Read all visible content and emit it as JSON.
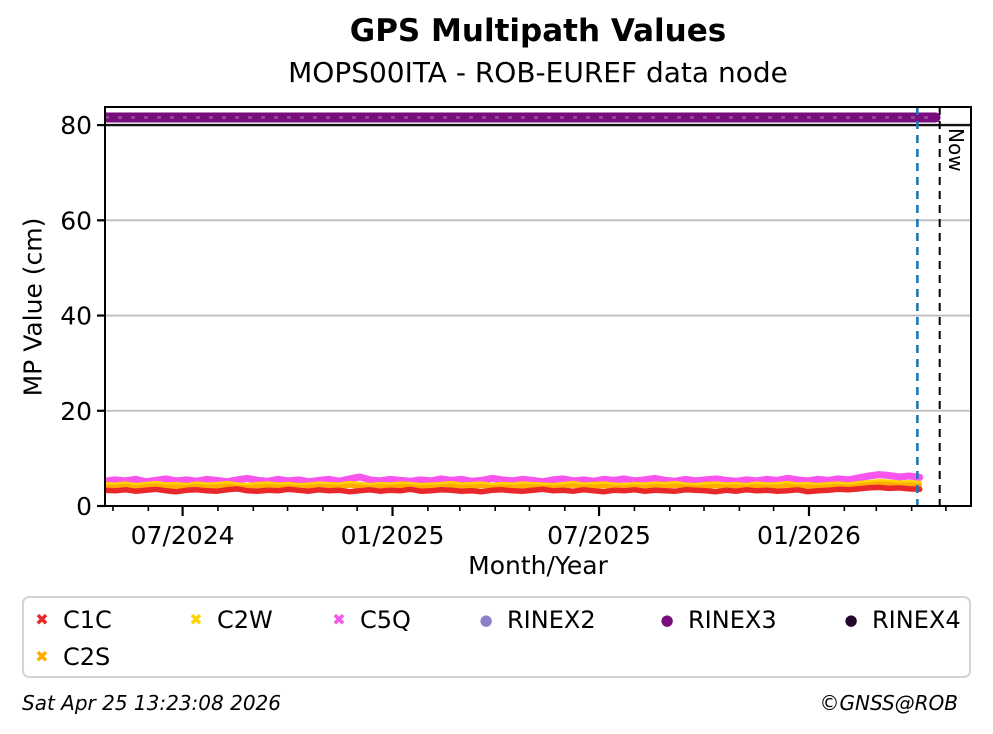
{
  "chart_data": {
    "type": "scatter",
    "title": "GPS Multipath Values",
    "subtitle": "MOPS00ITA - ROB-EUREF data node",
    "xlabel": "Month/Year",
    "ylabel": "MP Value (cm)",
    "ylim": [
      0,
      83.8
    ],
    "yticks": [
      0,
      20,
      40,
      60,
      80
    ],
    "x_range": {
      "start": "2024-04-24",
      "end": "2026-05-23"
    },
    "xticks_major": [
      {
        "label": "07/2024",
        "date": "2024-07-01"
      },
      {
        "label": "01/2025",
        "date": "2025-01-01"
      },
      {
        "label": "07/2025",
        "date": "2025-07-01"
      },
      {
        "label": "01/2026",
        "date": "2026-01-01"
      }
    ],
    "minor_tick_interval": "month",
    "gridlines": {
      "horizontal": [
        20,
        40,
        60
      ],
      "color": "#bbbbbb"
    },
    "divider_value": 80,
    "annotations": {
      "now_line": {
        "label": "Now",
        "date": "2026-04-25T13:23:08",
        "color": "#000000",
        "style": "dashed"
      },
      "last_data_line": {
        "date": "2026-04-06",
        "color": "#1f77b4",
        "style": "dashed"
      }
    },
    "series": [
      {
        "name": "C5Q",
        "color": "#f854ee",
        "marker": "x",
        "width": 7,
        "start": "2024-04-24",
        "end": "2026-04-08",
        "values": [
          5.2,
          5.5,
          5.3,
          5.6,
          5.1,
          5.4,
          5.7,
          5.3,
          5.5,
          5.2,
          5.6,
          5.4,
          5.1,
          5.5,
          5.8,
          5.4,
          5.2,
          5.6,
          5.3,
          5.5,
          5.1,
          5.4,
          5.6,
          5.2,
          5.7,
          6.1,
          5.5,
          5.3,
          5.6,
          5.4,
          5.2,
          5.5,
          5.3,
          5.7,
          5.4,
          5.6,
          5.2,
          5.4,
          5.8,
          5.5,
          5.3,
          5.6,
          5.4,
          5.1,
          5.5,
          5.7,
          5.3,
          5.5,
          5.2,
          5.6,
          5.4,
          5.7,
          5.3,
          5.5,
          5.8,
          5.4,
          5.2,
          5.6,
          5.3,
          5.5,
          5.7,
          5.4,
          5.2,
          5.5,
          5.3,
          5.6,
          5.4,
          5.8,
          5.5,
          5.3,
          5.6,
          5.4,
          5.7,
          5.5,
          5.9,
          6.3,
          6.6,
          6.4,
          6.1,
          6.3,
          6.0
        ]
      },
      {
        "name": "C2W",
        "color": "#ffd400",
        "marker": "x",
        "width": 4.5,
        "start": "2024-04-24",
        "end": "2026-04-08",
        "values": [
          4.6,
          4.5,
          4.7,
          4.4,
          4.6,
          4.8,
          4.5,
          4.6,
          4.4,
          4.7,
          4.5,
          4.6,
          4.8,
          4.5,
          4.4,
          4.6,
          4.7,
          4.5,
          4.6,
          4.4,
          4.5,
          4.7,
          4.6,
          4.5,
          4.8,
          4.6,
          4.4,
          4.6,
          4.5,
          4.7,
          4.6,
          4.4,
          4.5,
          4.6,
          4.8,
          4.5,
          4.6,
          4.7,
          4.4,
          4.6,
          4.5,
          4.7,
          4.6,
          4.5,
          4.4,
          4.6,
          4.8,
          4.5,
          4.6,
          4.7,
          4.5,
          4.4,
          4.6,
          4.5,
          4.7,
          4.6,
          4.8,
          4.5,
          4.4,
          4.6,
          4.7,
          4.5,
          4.6,
          4.4,
          4.7,
          4.5,
          4.6,
          4.8,
          4.5,
          4.6,
          4.4,
          4.6,
          4.7,
          4.5,
          4.8,
          5.0,
          5.2,
          5.1,
          4.9,
          5.0,
          4.8
        ]
      },
      {
        "name": "C2S",
        "color": "#ffae00",
        "marker": "x",
        "width": 4.5,
        "start": "2024-04-24",
        "end": "2026-04-08",
        "values": [
          4.1,
          4.0,
          4.2,
          3.9,
          4.1,
          4.3,
          4.0,
          4.1,
          3.9,
          4.2,
          4.0,
          4.1,
          4.3,
          4.0,
          3.9,
          4.1,
          4.2,
          4.0,
          4.1,
          3.9,
          4.0,
          4.2,
          4.1,
          4.0,
          4.3,
          4.1,
          3.9,
          4.1,
          4.0,
          4.2,
          4.1,
          3.9,
          4.0,
          4.1,
          4.3,
          4.0,
          4.1,
          4.2,
          3.9,
          4.1,
          4.0,
          4.2,
          4.1,
          4.0,
          3.9,
          4.1,
          4.3,
          4.0,
          4.1,
          4.2,
          4.0,
          3.9,
          4.1,
          4.0,
          4.2,
          4.1,
          4.3,
          4.0,
          3.9,
          4.1,
          4.2,
          4.0,
          4.1,
          3.9,
          4.2,
          4.0,
          4.1,
          4.3,
          4.0,
          4.1,
          3.9,
          4.1,
          4.2,
          4.0,
          4.3,
          4.5,
          4.7,
          4.6,
          4.4,
          4.5,
          4.3
        ]
      },
      {
        "name": "C1C",
        "color": "#e8282a",
        "marker": "x",
        "width": 5.5,
        "start": "2024-04-24",
        "end": "2026-04-08",
        "values": [
          3.3,
          3.2,
          3.4,
          3.1,
          3.3,
          3.5,
          3.2,
          3.0,
          3.3,
          3.4,
          3.2,
          3.1,
          3.4,
          3.6,
          3.2,
          3.1,
          3.3,
          3.2,
          3.5,
          3.3,
          3.1,
          3.4,
          3.2,
          3.3,
          3.0,
          3.2,
          3.4,
          3.1,
          3.3,
          3.2,
          3.5,
          3.1,
          3.2,
          3.4,
          3.3,
          3.1,
          3.2,
          3.0,
          3.3,
          3.4,
          3.2,
          3.1,
          3.3,
          3.5,
          3.2,
          3.3,
          3.1,
          3.4,
          3.2,
          3.0,
          3.3,
          3.2,
          3.4,
          3.1,
          3.3,
          3.2,
          3.1,
          3.4,
          3.3,
          3.2,
          3.0,
          3.3,
          3.1,
          3.4,
          3.2,
          3.3,
          3.1,
          3.2,
          3.4,
          3.0,
          3.2,
          3.3,
          3.5,
          3.4,
          3.6,
          3.8,
          3.9,
          3.7,
          3.8,
          3.6,
          3.5
        ]
      },
      {
        "name": "RINEX3",
        "color": "#780d7e",
        "marker": "o",
        "width": 10,
        "start": "2024-04-24",
        "end": "2026-04-22",
        "values": [
          81.6,
          81.6
        ]
      },
      {
        "name": "RINEX2",
        "color": "#8c80c8",
        "marker": "o",
        "width": 10,
        "start": "",
        "end": "",
        "values": []
      },
      {
        "name": "RINEX4",
        "color": "#23082b",
        "marker": "o",
        "width": 10,
        "start": "",
        "end": "",
        "values": []
      }
    ]
  },
  "legend": {
    "items": [
      {
        "label": "C1C",
        "marker": "x",
        "glyph": "✖",
        "color": "#e8282a"
      },
      {
        "label": "C2W",
        "marker": "x",
        "glyph": "✖",
        "color": "#ffd400"
      },
      {
        "label": "C5Q",
        "marker": "x",
        "glyph": "✖",
        "color": "#f854ee"
      },
      {
        "label": "RINEX2",
        "marker": "o",
        "glyph": "●",
        "color": "#8c80c8"
      },
      {
        "label": "RINEX3",
        "marker": "o",
        "glyph": "●",
        "color": "#780d7e"
      },
      {
        "label": "RINEX4",
        "marker": "o",
        "glyph": "●",
        "color": "#23082b"
      },
      {
        "label": "C2S",
        "marker": "x",
        "glyph": "✖",
        "color": "#ffae00"
      }
    ]
  },
  "footer": {
    "timestamp": "Sat Apr 25 13:23:08 2026",
    "credit": "©GNSS@ROB"
  }
}
